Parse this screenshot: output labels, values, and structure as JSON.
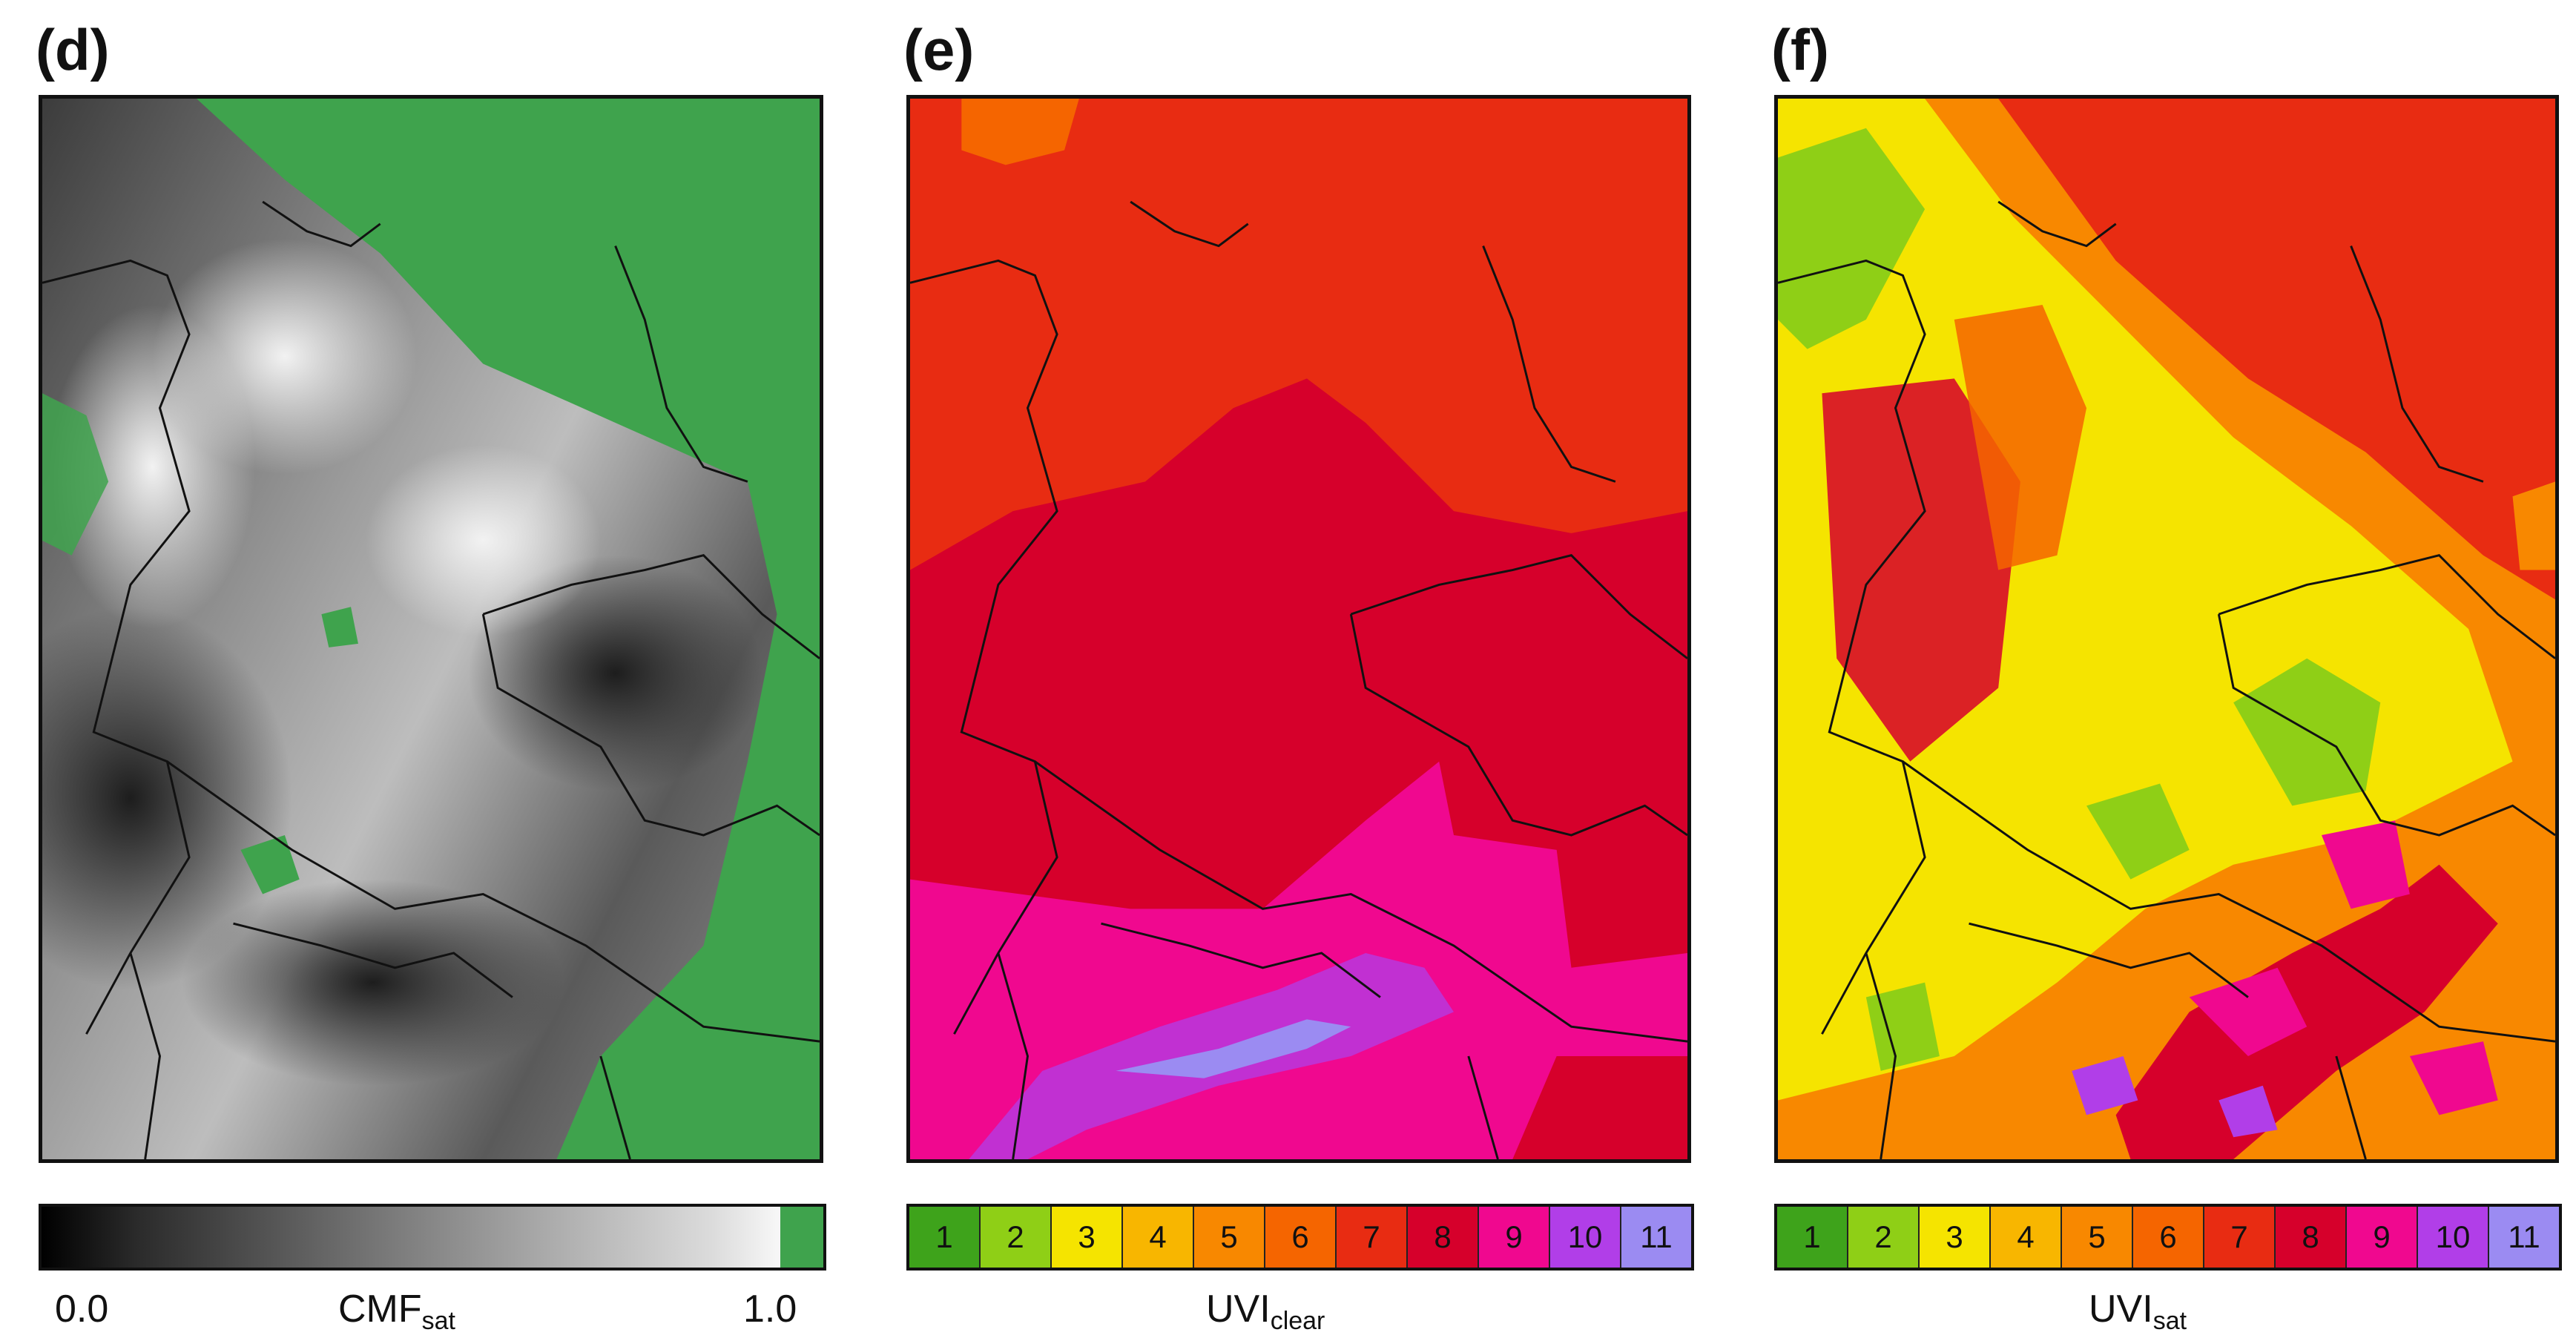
{
  "panels": [
    {
      "label": "(d)",
      "colorbar_title": "CMF",
      "colorbar_subscript": "sat",
      "tick_min": "0.0",
      "tick_max": "1.0"
    },
    {
      "label": "(e)",
      "colorbar_title": "UVI",
      "colorbar_subscript": "clear"
    },
    {
      "label": "(f)",
      "colorbar_title": "UVI",
      "colorbar_subscript": "sat"
    }
  ],
  "uvi_scale": {
    "labels": [
      "1",
      "2",
      "3",
      "4",
      "5",
      "6",
      "7",
      "8",
      "9",
      "10",
      "11"
    ],
    "colors": [
      "#3ea31b",
      "#8fcf16",
      "#f5e400",
      "#f8b600",
      "#f88800",
      "#f56500",
      "#e82c12",
      "#d6002b",
      "#f0088f",
      "#b13ee8",
      "#9b8bf2"
    ]
  },
  "cmf_colors": {
    "cloudy_dark": "#1e1e1e",
    "cloudy_light": "#eeeeee",
    "clear_sky": "#3fa34d"
  }
}
